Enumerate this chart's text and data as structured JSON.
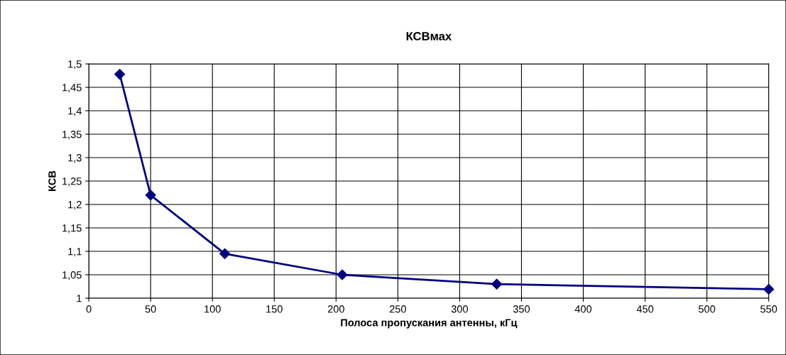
{
  "chart_data": {
    "type": "line",
    "title": "КСВмах",
    "xlabel": "Полоса пропускания антенны, кГц",
    "ylabel": "КСВ",
    "x": [
      25,
      50,
      110,
      205,
      330,
      550
    ],
    "series": [
      {
        "color": "#000080",
        "values": [
          1.478,
          1.22,
          1.095,
          1.05,
          1.03,
          1.019
        ]
      }
    ],
    "xlim": [
      0,
      550
    ],
    "xticks": [
      0,
      50,
      100,
      150,
      200,
      250,
      300,
      350,
      400,
      450,
      500,
      550
    ],
    "ylim": [
      1,
      1.5
    ],
    "yticks": [
      {
        "value": 1,
        "label": "1"
      },
      {
        "value": 1.05,
        "label": "1,05"
      },
      {
        "value": 1.1,
        "label": "1,1"
      },
      {
        "value": 1.15,
        "label": "1,15"
      },
      {
        "value": 1.2,
        "label": "1,2"
      },
      {
        "value": 1.25,
        "label": "1,25"
      },
      {
        "value": 1.3,
        "label": "1,3"
      },
      {
        "value": 1.35,
        "label": "1,35"
      },
      {
        "value": 1.4,
        "label": "1,4"
      },
      {
        "value": 1.45,
        "label": "1,45"
      },
      {
        "value": 1.5,
        "label": "1,5"
      }
    ],
    "grid": true,
    "marker": "diamond",
    "line_style": "solid",
    "legend": false
  }
}
